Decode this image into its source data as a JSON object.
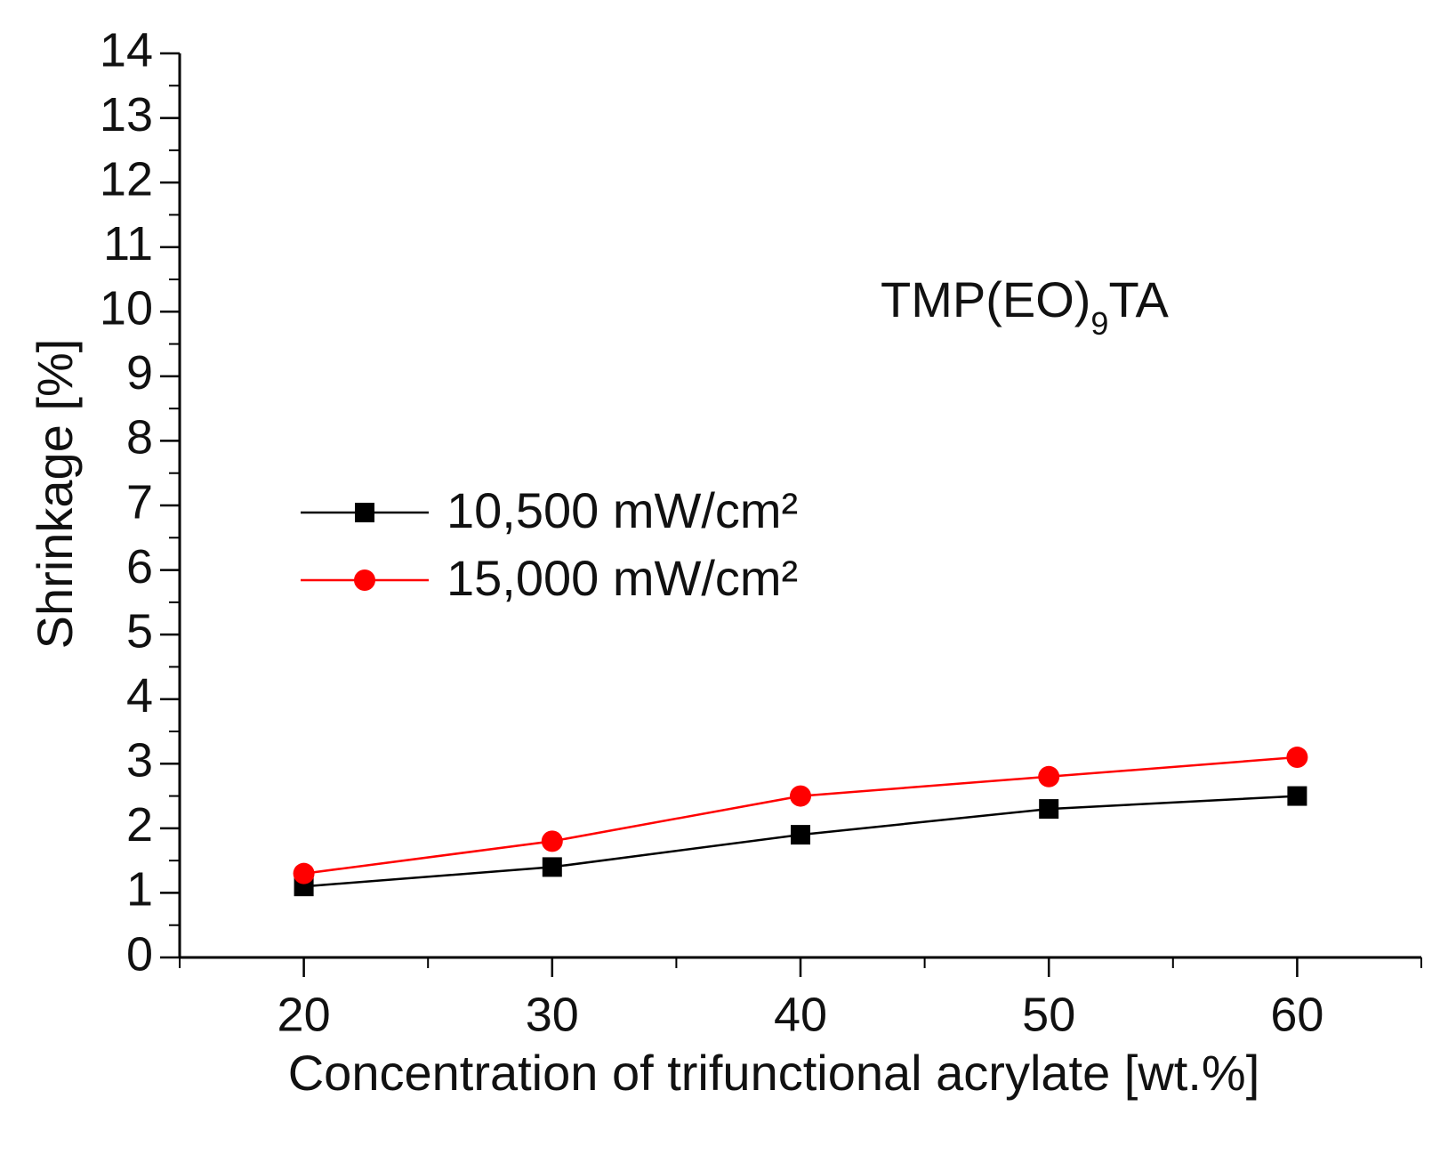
{
  "chart_data": {
    "type": "line",
    "title": "",
    "annotation": {
      "main": "TMP(EO)",
      "subscript": "9",
      "suffix": "TA"
    },
    "xlabel": "Concentration of trifunctional acrylate [wt.%]",
    "ylabel": "Shrinkage [%]",
    "xlim": [
      15,
      65
    ],
    "ylim": [
      0,
      14
    ],
    "x_ticks": [
      20,
      30,
      40,
      50,
      60
    ],
    "x_tick_labels": [
      "20",
      "30",
      "40",
      "50",
      "60"
    ],
    "y_ticks": [
      0,
      1,
      2,
      3,
      4,
      5,
      6,
      7,
      8,
      9,
      10,
      11,
      12,
      13,
      14
    ],
    "y_tick_labels": [
      "0",
      "1",
      "2",
      "3",
      "4",
      "5",
      "6",
      "7",
      "8",
      "9",
      "10",
      "11",
      "12",
      "13",
      "14"
    ],
    "grid": false,
    "legend_position": "middle-left",
    "x": [
      20,
      30,
      40,
      50,
      60
    ],
    "series": [
      {
        "name": "10,500 mW/cm²",
        "values": [
          1.1,
          1.4,
          1.9,
          2.3,
          2.5
        ],
        "color": "#000000",
        "marker": "square"
      },
      {
        "name": "15,000 mW/cm²",
        "values": [
          1.3,
          1.8,
          2.5,
          2.8,
          3.1
        ],
        "color": "#ff0000",
        "marker": "circle"
      }
    ]
  }
}
